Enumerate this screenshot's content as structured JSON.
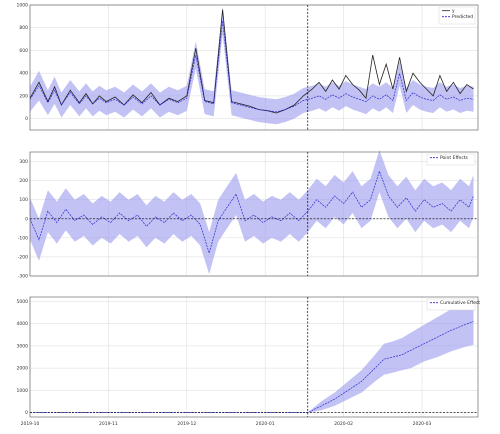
{
  "colors": {
    "actual": "#222222",
    "predicted": "#2b2bd6",
    "band": "#9999ee",
    "grid": "#d9d9d9"
  },
  "chart_data": [
    {
      "type": "line",
      "panel": "observed-vs-predicted",
      "title": "",
      "xlabel": "",
      "ylabel": "",
      "ylim": [
        -100,
        1000
      ],
      "yticks": [
        0,
        200,
        400,
        600,
        800,
        1000
      ],
      "ytick_labels": [
        "0",
        "200",
        "400",
        "600",
        "800",
        "1000"
      ],
      "grid": true,
      "legend_position": "top-right",
      "legend": [
        "y",
        "Predicted"
      ],
      "intervention_x": 124,
      "x_range": [
        0,
        200
      ],
      "series": [
        {
          "name": "y",
          "x": [
            0,
            4,
            8,
            11,
            14,
            18,
            22,
            25,
            28,
            31,
            34,
            38,
            42,
            46,
            50,
            54,
            58,
            62,
            66,
            70,
            74,
            78,
            82,
            86,
            90,
            94,
            98,
            102,
            106,
            110,
            114,
            118,
            122,
            126,
            129,
            132,
            135,
            138,
            141,
            144,
            147,
            150,
            153,
            156,
            159,
            162,
            165,
            168,
            171,
            174,
            177,
            180,
            183,
            186,
            189,
            192,
            195,
            198
          ],
          "values": [
            180,
            320,
            150,
            280,
            120,
            250,
            140,
            220,
            130,
            200,
            150,
            190,
            120,
            210,
            140,
            230,
            120,
            180,
            150,
            200,
            620,
            160,
            140,
            960,
            150,
            130,
            110,
            80,
            70,
            50,
            80,
            120,
            200,
            260,
            320,
            240,
            340,
            260,
            380,
            300,
            250,
            180,
            560,
            300,
            480,
            260,
            540,
            240,
            400,
            320,
            260,
            200,
            380,
            240,
            320,
            220,
            300,
            260
          ]
        },
        {
          "name": "Predicted",
          "x": [
            0,
            4,
            8,
            11,
            14,
            18,
            22,
            25,
            28,
            31,
            34,
            38,
            42,
            46,
            50,
            54,
            58,
            62,
            66,
            70,
            74,
            78,
            82,
            86,
            90,
            94,
            98,
            102,
            106,
            110,
            114,
            118,
            122,
            126,
            129,
            132,
            135,
            138,
            141,
            144,
            147,
            150,
            153,
            156,
            159,
            162,
            165,
            168,
            171,
            174,
            177,
            180,
            183,
            186,
            189,
            192,
            195,
            198
          ],
          "values": [
            170,
            290,
            140,
            250,
            120,
            230,
            130,
            200,
            130,
            180,
            140,
            170,
            120,
            190,
            130,
            200,
            120,
            170,
            140,
            180,
            560,
            150,
            130,
            860,
            140,
            120,
            100,
            80,
            70,
            60,
            80,
            110,
            160,
            180,
            200,
            170,
            210,
            180,
            220,
            190,
            170,
            150,
            200,
            170,
            210,
            160,
            400,
            160,
            230,
            190,
            170,
            160,
            210,
            170,
            190,
            160,
            180,
            170
          ],
          "lower": [
            60,
            160,
            30,
            130,
            10,
            120,
            20,
            90,
            20,
            70,
            30,
            60,
            10,
            80,
            20,
            90,
            10,
            60,
            30,
            70,
            440,
            40,
            20,
            740,
            30,
            10,
            -10,
            -30,
            -40,
            -50,
            -30,
            0,
            50,
            70,
            90,
            60,
            100,
            70,
            110,
            80,
            60,
            40,
            90,
            60,
            100,
            50,
            290,
            50,
            120,
            80,
            60,
            50,
            100,
            60,
            80,
            50,
            70,
            60
          ],
          "upper": [
            280,
            420,
            250,
            370,
            230,
            340,
            240,
            310,
            240,
            290,
            250,
            280,
            230,
            300,
            240,
            310,
            230,
            280,
            250,
            290,
            680,
            260,
            240,
            980,
            250,
            230,
            210,
            190,
            180,
            170,
            190,
            220,
            270,
            290,
            310,
            280,
            320,
            290,
            330,
            300,
            280,
            260,
            310,
            280,
            320,
            270,
            510,
            270,
            340,
            300,
            280,
            270,
            320,
            280,
            300,
            270,
            290,
            280
          ]
        }
      ]
    },
    {
      "type": "line",
      "panel": "point-effects",
      "title": "",
      "xlabel": "",
      "ylabel": "",
      "ylim": [
        -300,
        350
      ],
      "yticks": [
        -300,
        -200,
        -100,
        0,
        100,
        200,
        300
      ],
      "ytick_labels": [
        "-300",
        "-200",
        "-100",
        "0",
        "100",
        "200",
        "300"
      ],
      "grid": true,
      "legend_position": "top-right",
      "legend": [
        "Point Effects"
      ],
      "intervention_x": 124,
      "x_range": [
        0,
        200
      ],
      "series": [
        {
          "name": "Point Effects",
          "x": [
            0,
            4,
            8,
            12,
            16,
            20,
            24,
            28,
            32,
            36,
            40,
            44,
            48,
            52,
            56,
            60,
            64,
            68,
            72,
            76,
            80,
            84,
            88,
            92,
            96,
            100,
            104,
            108,
            112,
            116,
            120,
            124,
            128,
            132,
            136,
            140,
            144,
            148,
            152,
            156,
            160,
            164,
            168,
            172,
            176,
            180,
            184,
            188,
            192,
            196,
            198
          ],
          "values": [
            0,
            -110,
            40,
            -20,
            50,
            -10,
            20,
            -30,
            10,
            -20,
            30,
            -10,
            20,
            -40,
            10,
            -20,
            30,
            -10,
            20,
            -30,
            -180,
            -10,
            60,
            130,
            -10,
            20,
            -20,
            10,
            -10,
            30,
            -10,
            40,
            100,
            60,
            120,
            80,
            140,
            60,
            100,
            250,
            120,
            60,
            110,
            40,
            100,
            60,
            80,
            40,
            100,
            60,
            120
          ],
          "lower": [
            -110,
            -220,
            -70,
            -130,
            -60,
            -120,
            -90,
            -140,
            -100,
            -130,
            -80,
            -120,
            -90,
            -150,
            -100,
            -130,
            -80,
            -120,
            -90,
            -140,
            -290,
            -120,
            -50,
            20,
            -120,
            -90,
            -130,
            -100,
            -120,
            -80,
            -120,
            -70,
            -10,
            -50,
            10,
            -30,
            30,
            -50,
            -10,
            140,
            10,
            -50,
            0,
            -70,
            -10,
            -50,
            -30,
            -70,
            -10,
            -50,
            10
          ],
          "upper": [
            110,
            0,
            150,
            90,
            160,
            100,
            130,
            80,
            120,
            90,
            140,
            100,
            130,
            70,
            120,
            90,
            140,
            100,
            130,
            80,
            -70,
            100,
            170,
            240,
            100,
            130,
            90,
            120,
            100,
            140,
            100,
            150,
            210,
            170,
            230,
            190,
            250,
            170,
            210,
            360,
            230,
            170,
            220,
            150,
            210,
            170,
            190,
            150,
            210,
            170,
            230
          ]
        }
      ]
    },
    {
      "type": "line",
      "panel": "cumulative-effect",
      "title": "",
      "xlabel": "",
      "ylabel": "",
      "ylim": [
        -200,
        5200
      ],
      "yticks": [
        0,
        1000,
        2000,
        3000,
        4000,
        5000
      ],
      "ytick_labels": [
        "0",
        "1000",
        "2000",
        "3000",
        "4000",
        "5000"
      ],
      "grid": true,
      "legend_position": "top-right",
      "legend": [
        "Cumulative Effect"
      ],
      "intervention_x": 124,
      "x_range": [
        0,
        200
      ],
      "xticks": [
        0,
        35,
        70,
        105,
        140,
        175
      ],
      "xtick_labels": [
        "2019-10",
        "2019-11",
        "2019-12",
        "2020-01",
        "2020-02",
        "2020-03"
      ],
      "series": [
        {
          "name": "Cumulative Effect",
          "x": [
            0,
            124,
            130,
            136,
            142,
            148,
            154,
            158,
            162,
            166,
            170,
            176,
            182,
            188,
            194,
            198
          ],
          "values": [
            0,
            0,
            300,
            600,
            1000,
            1400,
            2000,
            2400,
            2500,
            2600,
            2800,
            3100,
            3400,
            3700,
            3950,
            4100
          ],
          "lower": [
            0,
            0,
            100,
            300,
            600,
            900,
            1400,
            1700,
            1800,
            1900,
            2000,
            2300,
            2500,
            2750,
            2950,
            3050
          ],
          "upper": [
            0,
            0,
            500,
            900,
            1400,
            1900,
            2600,
            3100,
            3200,
            3350,
            3600,
            3950,
            4300,
            4650,
            4950,
            5150
          ]
        }
      ]
    }
  ]
}
